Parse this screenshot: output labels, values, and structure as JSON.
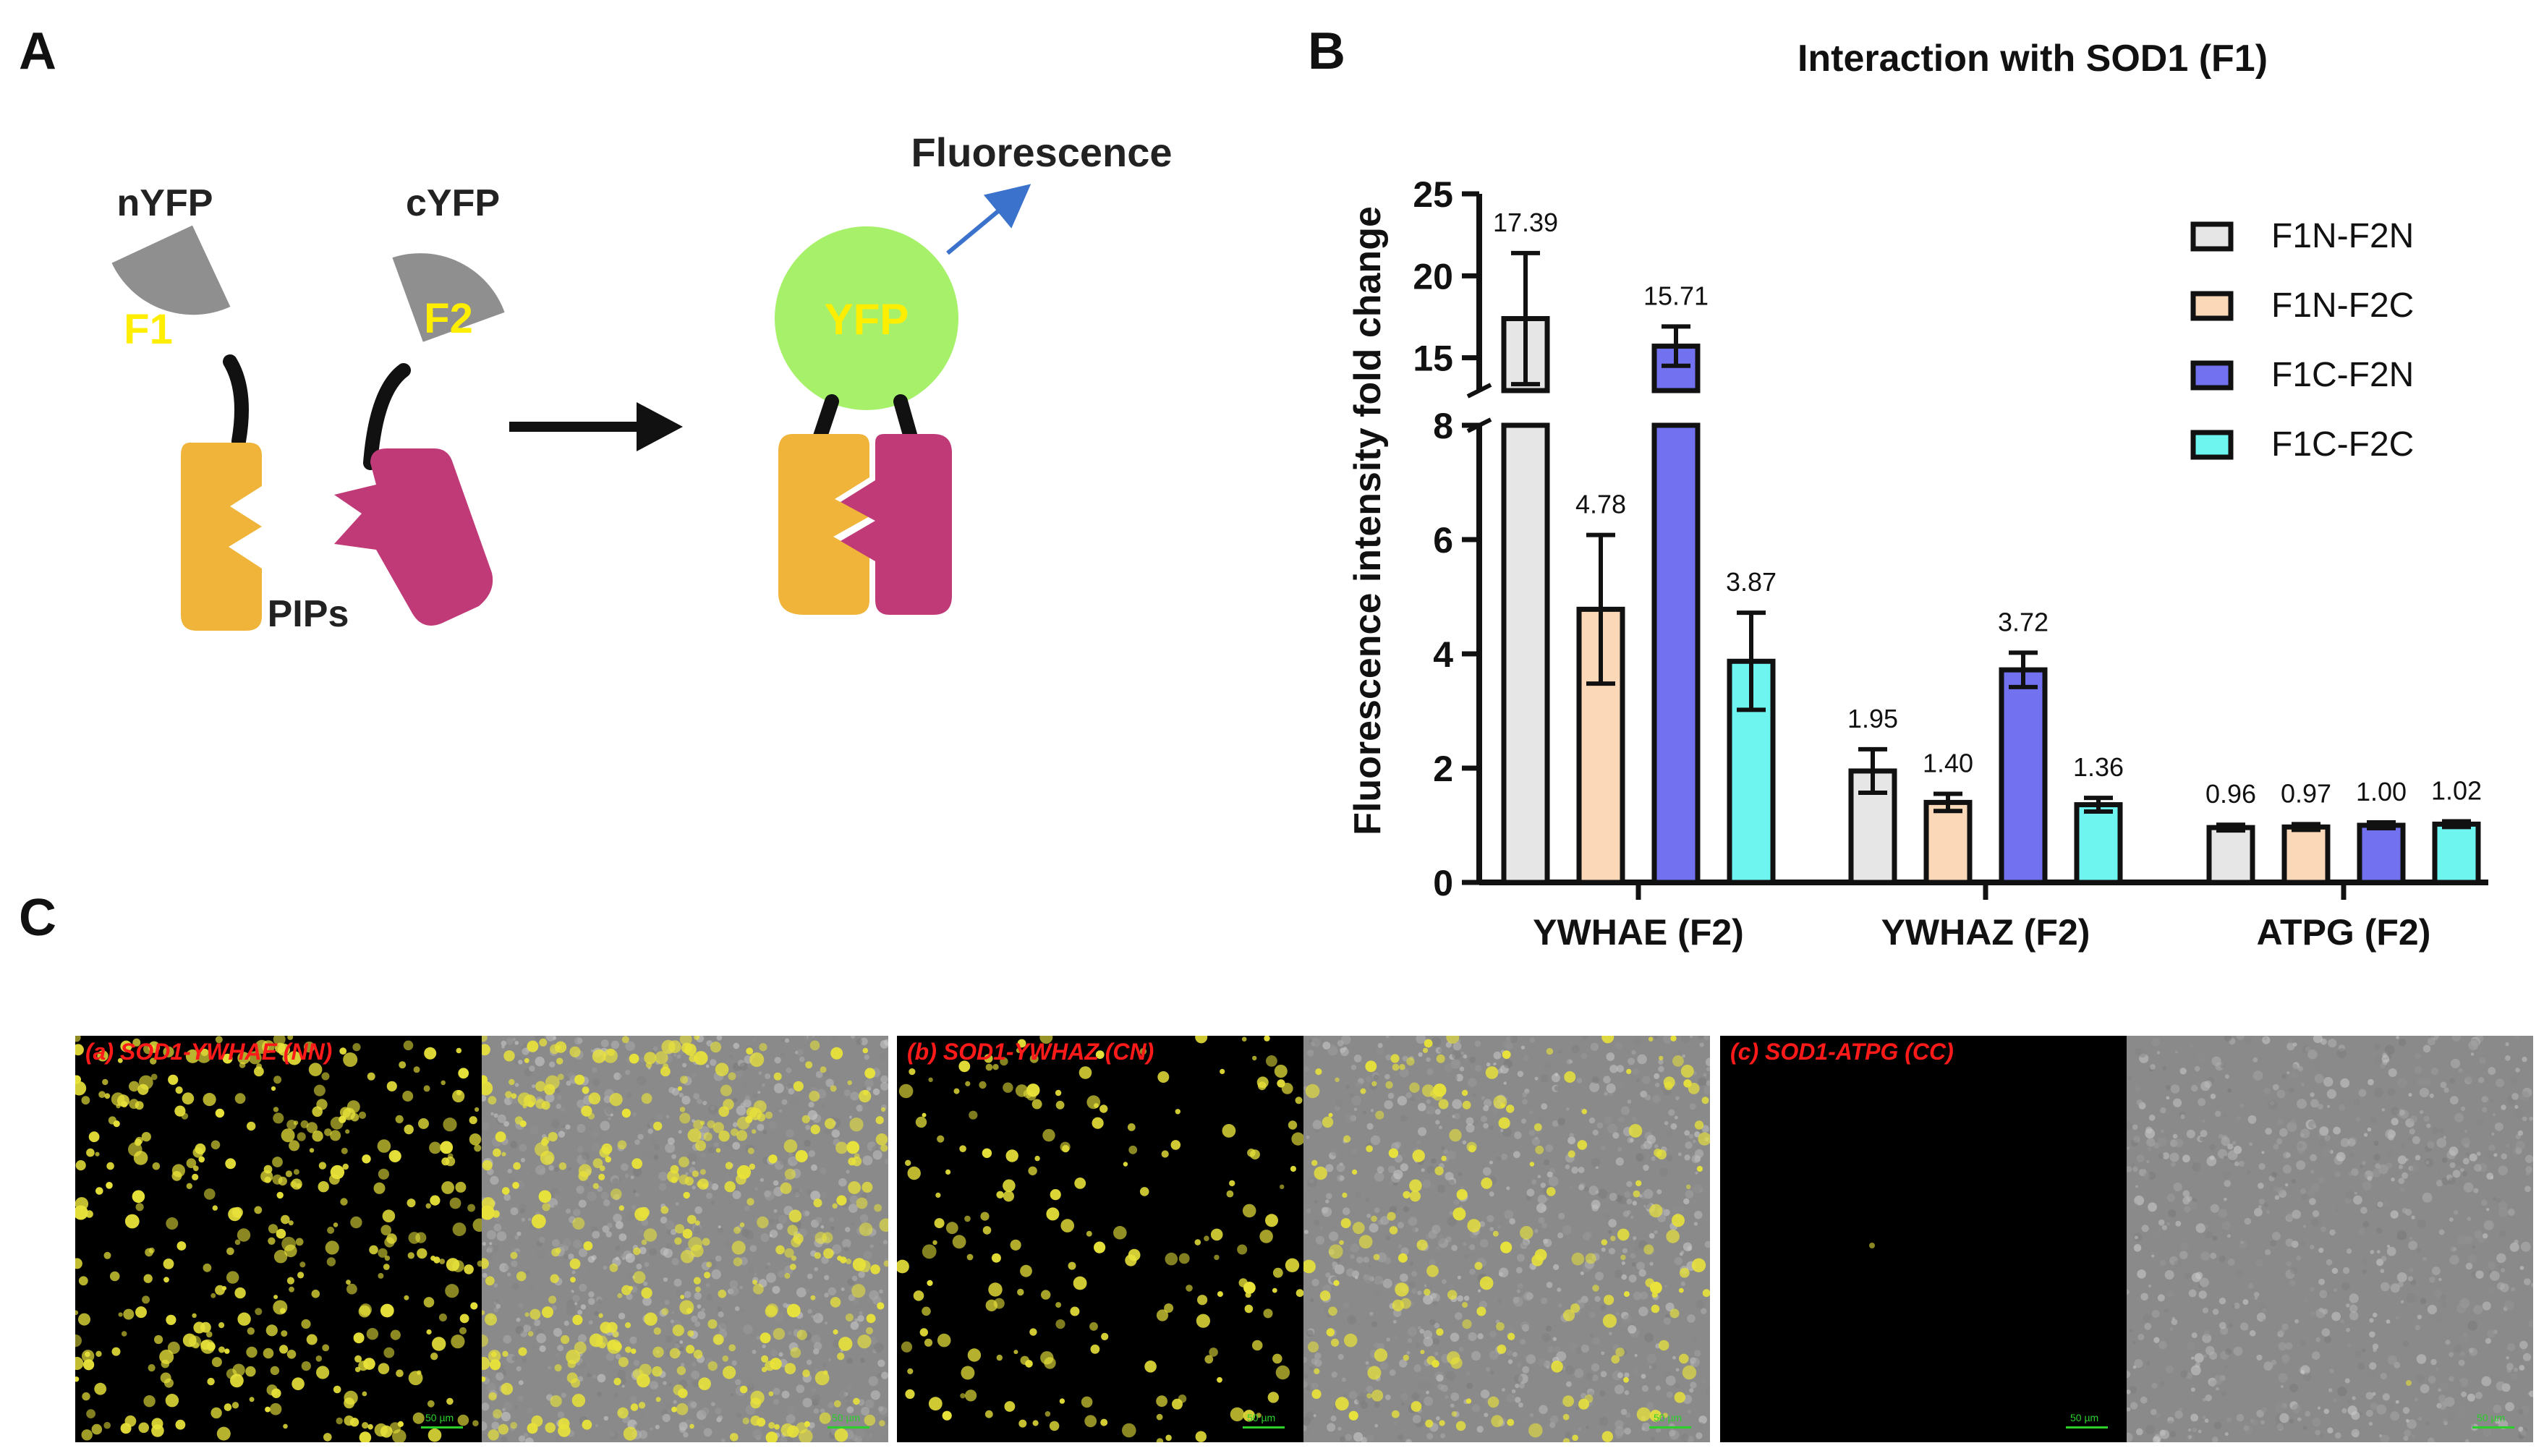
{
  "panels": {
    "a": "A",
    "b": "B",
    "c": "C"
  },
  "schematic": {
    "labels": {
      "nyfp": "nYFP",
      "cyfp": "cYFP",
      "f1": "F1",
      "f2": "F2",
      "yfp": "YFP",
      "pips": "PIPs",
      "fluorescence": "Fluorescence"
    },
    "colors": {
      "half_yfp": "#8f8f8f",
      "f_label": "#ffee00",
      "yfp_circle": "#a6f06a",
      "yfp_text": "#ffee00",
      "protein_orange": "#f0b43a",
      "protein_magenta": "#c03a78",
      "arrow_blue": "#3a72cc"
    }
  },
  "chart_data": {
    "type": "bar",
    "title": "Interaction with SOD1 (F1)",
    "xlabel": "",
    "ylabel": "Fluorescence intensity fold change",
    "categories": [
      "YWHAE (F2)",
      "YWHAZ (F2)",
      "ATPG (F2)"
    ],
    "series": [
      {
        "name": "F1N-F2N",
        "color": "#e6e6e6",
        "values": [
          17.39,
          1.95,
          0.96
        ],
        "errors": [
          4.0,
          0.38,
          0.05
        ],
        "labels": [
          "17.39",
          "1.95",
          "0.96"
        ]
      },
      {
        "name": "F1N-F2C",
        "color": "#fbd9b8",
        "values": [
          4.78,
          1.4,
          0.97
        ],
        "errors": [
          1.3,
          0.15,
          0.05
        ],
        "labels": [
          "4.78",
          "1.40",
          "0.97"
        ]
      },
      {
        "name": "F1C-F2N",
        "color": "#7272f0",
        "values": [
          15.71,
          3.72,
          1.0
        ],
        "errors": [
          1.2,
          0.3,
          0.05
        ],
        "labels": [
          "15.71",
          "3.72",
          "1.00"
        ]
      },
      {
        "name": "F1C-F2C",
        "color": "#6ff5f0",
        "values": [
          3.87,
          1.36,
          1.02
        ],
        "errors": [
          0.85,
          0.12,
          0.05
        ],
        "labels": [
          "3.87",
          "1.36",
          "1.02"
        ]
      }
    ],
    "y_axis_broken": true,
    "y_segments": [
      {
        "range": [
          0,
          8
        ],
        "ticks": [
          0,
          2,
          4,
          6,
          8
        ]
      },
      {
        "range": [
          13,
          25
        ],
        "ticks": [
          15,
          20,
          25
        ]
      }
    ],
    "legend_position": "top-right",
    "grid": false
  },
  "microscopy": [
    {
      "label": "(a) SOD1-YWHAE (NN)",
      "scale": "50 µm",
      "scale_merged": "50 µm",
      "density": 0.9
    },
    {
      "label": "(b) SOD1-YWHAZ (CN)",
      "scale": "50 µm",
      "scale_merged": "50 µm",
      "density": 0.45
    },
    {
      "label": "(c) SOD1-ATPG (CC)",
      "scale": "50 µm",
      "scale_merged": "50 µm",
      "density": 0.0
    }
  ],
  "microscopy_colors": {
    "yellow": "#e8e23a",
    "dark": "#000000",
    "bright_bg": "#8a8a8a"
  }
}
